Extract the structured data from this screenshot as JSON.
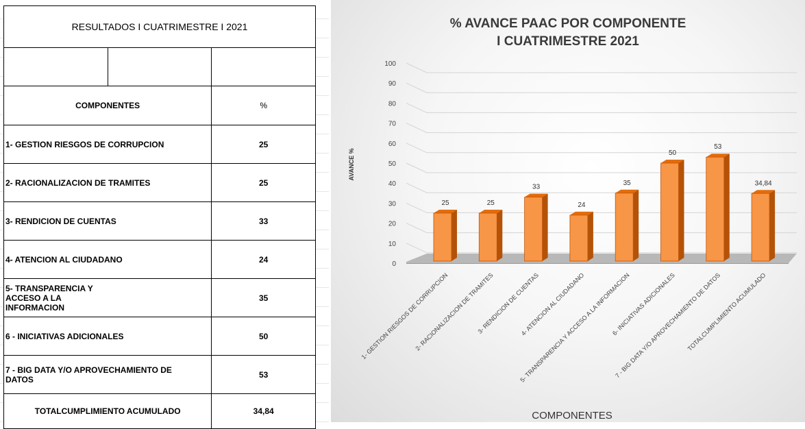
{
  "table": {
    "title": "RESULTADOS I CUATRIMESTRE I  2021",
    "header_component": "COMPONENTES",
    "header_percent": "%",
    "rows": [
      {
        "label": "1- GESTION RIESGOS DE CORRUPCION",
        "value": "25"
      },
      {
        "label": "2- RACIONALIZACION DE TRAMITES",
        "value": "25"
      },
      {
        "label": "3- RENDICION DE CUENTAS",
        "value": "33"
      },
      {
        "label": "4- ATENCION AL CIUDADANO",
        "value": "24"
      },
      {
        "label": "5- TRANSPARENCIA Y ACCESO A LA INFORMACION",
        "value": "35"
      },
      {
        "label": "6 - INICIATIVAS ADICIONALES",
        "value": "50"
      },
      {
        "label": "7 - BIG DATA Y/O APROVECHAMIENTO DE DATOS",
        "value": "53"
      }
    ],
    "total_label": "TOTALCUMPLIMIENTO ACUMULADO",
    "total_value": "34,84"
  },
  "chart_data": {
    "type": "bar",
    "title_line1": "% AVANCE PAAC  POR COMPONENTE",
    "title_line2": "I CUATRIMESTRE 2021",
    "ylabel": "AVANCE %",
    "xlabel": "COMPONENTES",
    "ylim": [
      0,
      100
    ],
    "yticks": [
      0,
      10,
      20,
      30,
      40,
      50,
      60,
      70,
      80,
      90,
      100
    ],
    "categories": [
      "1- GESTION RIESGOS DE CORRUPCION",
      "2- RACIONALIZACION DE TRAMITES",
      "3- RENDICION DE CUENTAS",
      "4- ATENCION AL CIUDADANO",
      "5- TRANSPARENCIA Y ACCESO A LA INFORMACION",
      "6- INICIATIVAS ADICIONALES",
      "7 - BIG DATA Y/O APROVECHAMIENTO DE DATOS",
      "TOTALCUMPLIMIENTO ACUMULADO"
    ],
    "values": [
      25,
      25,
      33,
      24,
      35,
      50,
      53,
      34.84
    ],
    "data_labels": [
      "25",
      "25",
      "33",
      "24",
      "35",
      "50",
      "53",
      "34,84"
    ],
    "grid": true,
    "bar_color": "#f79646"
  }
}
